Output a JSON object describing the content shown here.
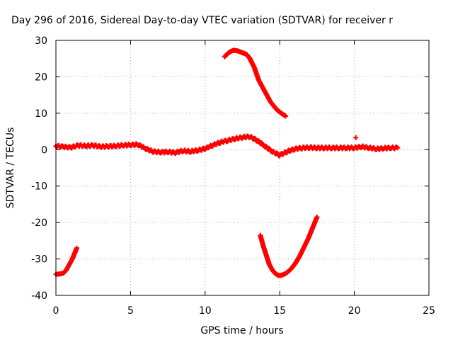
{
  "chart_data": {
    "type": "scatter",
    "title": "Day 296 of 2016, Sidereal Day-to-day VTEC variation (SDTVAR) for receiver r",
    "xlabel": "GPS time / hours",
    "ylabel": "SDTVAR / TECUs",
    "xlim": [
      0,
      25
    ],
    "ylim": [
      -40,
      30
    ],
    "xticks": [
      0,
      5,
      10,
      15,
      20,
      25
    ],
    "yticks": [
      -40,
      -30,
      -20,
      -10,
      0,
      10,
      20,
      30
    ],
    "xtick_labels": [
      "0",
      "5",
      "10",
      "15",
      "20",
      "25"
    ],
    "ytick_labels": [
      "-40",
      "-30",
      "-20",
      "-10",
      "0",
      "10",
      "20",
      "30"
    ],
    "grid": true,
    "marker": "plus",
    "color": "#ff0000",
    "series": [
      {
        "name": "baseline",
        "x": [
          0,
          0.5,
          1,
          1.5,
          2,
          2.5,
          3,
          3.5,
          4,
          4.5,
          5,
          5.5,
          6,
          6.5,
          7,
          7.5,
          8,
          8.5,
          9,
          9.5,
          10,
          10.5,
          11,
          11.5,
          12,
          12.5,
          13,
          13.5,
          14,
          14.5,
          15,
          15.5,
          16,
          16.5,
          17,
          17.5,
          18,
          18.5,
          19,
          19.5,
          20,
          20.5,
          21,
          21.5,
          22,
          22.5,
          22.9
        ],
        "y": [
          1.0,
          0.8,
          0.6,
          1.2,
          1.0,
          1.2,
          0.8,
          0.9,
          1.0,
          1.2,
          1.3,
          1.4,
          0.3,
          -0.5,
          -0.7,
          -0.6,
          -0.8,
          -0.3,
          -0.5,
          -0.2,
          0.3,
          1.2,
          2.0,
          2.5,
          3.0,
          3.4,
          3.6,
          2.5,
          1.0,
          -0.5,
          -1.5,
          -0.5,
          0.2,
          0.5,
          0.6,
          0.5,
          0.5,
          0.5,
          0.5,
          0.5,
          0.5,
          0.8,
          0.5,
          0.2,
          0.4,
          0.5,
          0.5
        ]
      },
      {
        "name": "high-arc",
        "x": [
          11.3,
          11.6,
          11.9,
          12.2,
          12.5,
          12.8,
          13.0,
          13.3,
          13.6,
          14.0,
          14.4,
          14.8,
          15.1,
          15.4
        ],
        "y": [
          25.5,
          26.7,
          27.3,
          27.1,
          26.6,
          26.1,
          25.0,
          22.5,
          19.0,
          16.0,
          13.0,
          11.0,
          10.0,
          9.2
        ]
      },
      {
        "name": "low-arc",
        "x": [
          13.7,
          13.9,
          14.1,
          14.3,
          14.5,
          14.7,
          14.9,
          15.1,
          15.4,
          15.7,
          16.0,
          16.3,
          16.6,
          16.9,
          17.2,
          17.5
        ],
        "y": [
          -23.5,
          -26.5,
          -29.0,
          -31.5,
          -33.0,
          -34.0,
          -34.5,
          -34.5,
          -34.0,
          -33.0,
          -31.5,
          -29.5,
          -27.0,
          -24.5,
          -21.5,
          -18.5
        ]
      },
      {
        "name": "early-segment",
        "x": [
          0.0,
          0.3,
          0.5,
          0.7,
          0.9,
          1.1,
          1.3,
          1.4
        ],
        "y": [
          -34.2,
          -34.1,
          -33.9,
          -33.0,
          -31.5,
          -30.0,
          -28.0,
          -27.0
        ]
      },
      {
        "name": "outlier",
        "x": [
          20.1
        ],
        "y": [
          3.3
        ]
      }
    ]
  }
}
